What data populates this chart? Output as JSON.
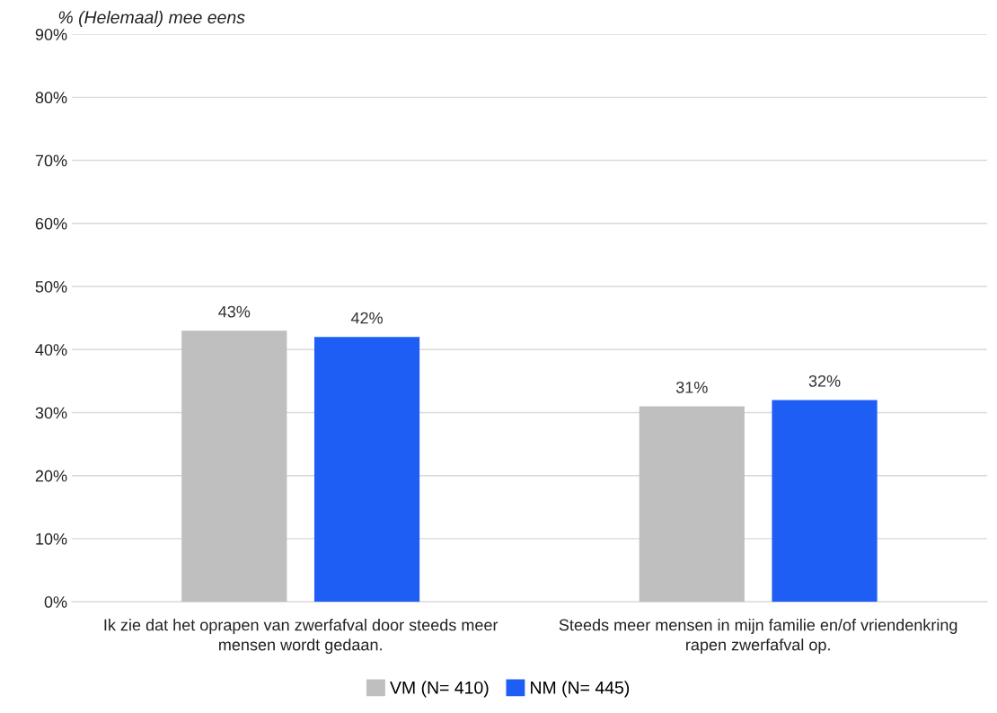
{
  "chart_data": {
    "type": "bar",
    "ylabel": "% (Helemaal) mee eens",
    "categories": [
      "Ik zie dat het oprapen van zwerfafval door steeds meer mensen wordt gedaan.",
      "Steeds meer mensen in mijn familie en/of vriendenkring rapen zwerfafval op."
    ],
    "series": [
      {
        "name": "VM (N= 410)",
        "color": "#bfbfbf",
        "values": [
          43,
          31
        ],
        "value_labels": [
          "43%",
          "31%"
        ]
      },
      {
        "name": "NM (N= 445)",
        "color": "#1f5ef5",
        "values": [
          42,
          32
        ],
        "value_labels": [
          "42%",
          "32%"
        ]
      }
    ],
    "ylim": [
      0,
      90
    ],
    "yticks": [
      {
        "value": 0,
        "label": "0%"
      },
      {
        "value": 10,
        "label": "10%"
      },
      {
        "value": 20,
        "label": "20%"
      },
      {
        "value": 30,
        "label": "30%"
      },
      {
        "value": 40,
        "label": "40%"
      },
      {
        "value": 50,
        "label": "50%"
      },
      {
        "value": 60,
        "label": "60%"
      },
      {
        "value": 70,
        "label": "70%"
      },
      {
        "value": 80,
        "label": "80%"
      },
      {
        "value": 90,
        "label": "90%"
      }
    ],
    "grid": "y",
    "legend": "bottom"
  }
}
